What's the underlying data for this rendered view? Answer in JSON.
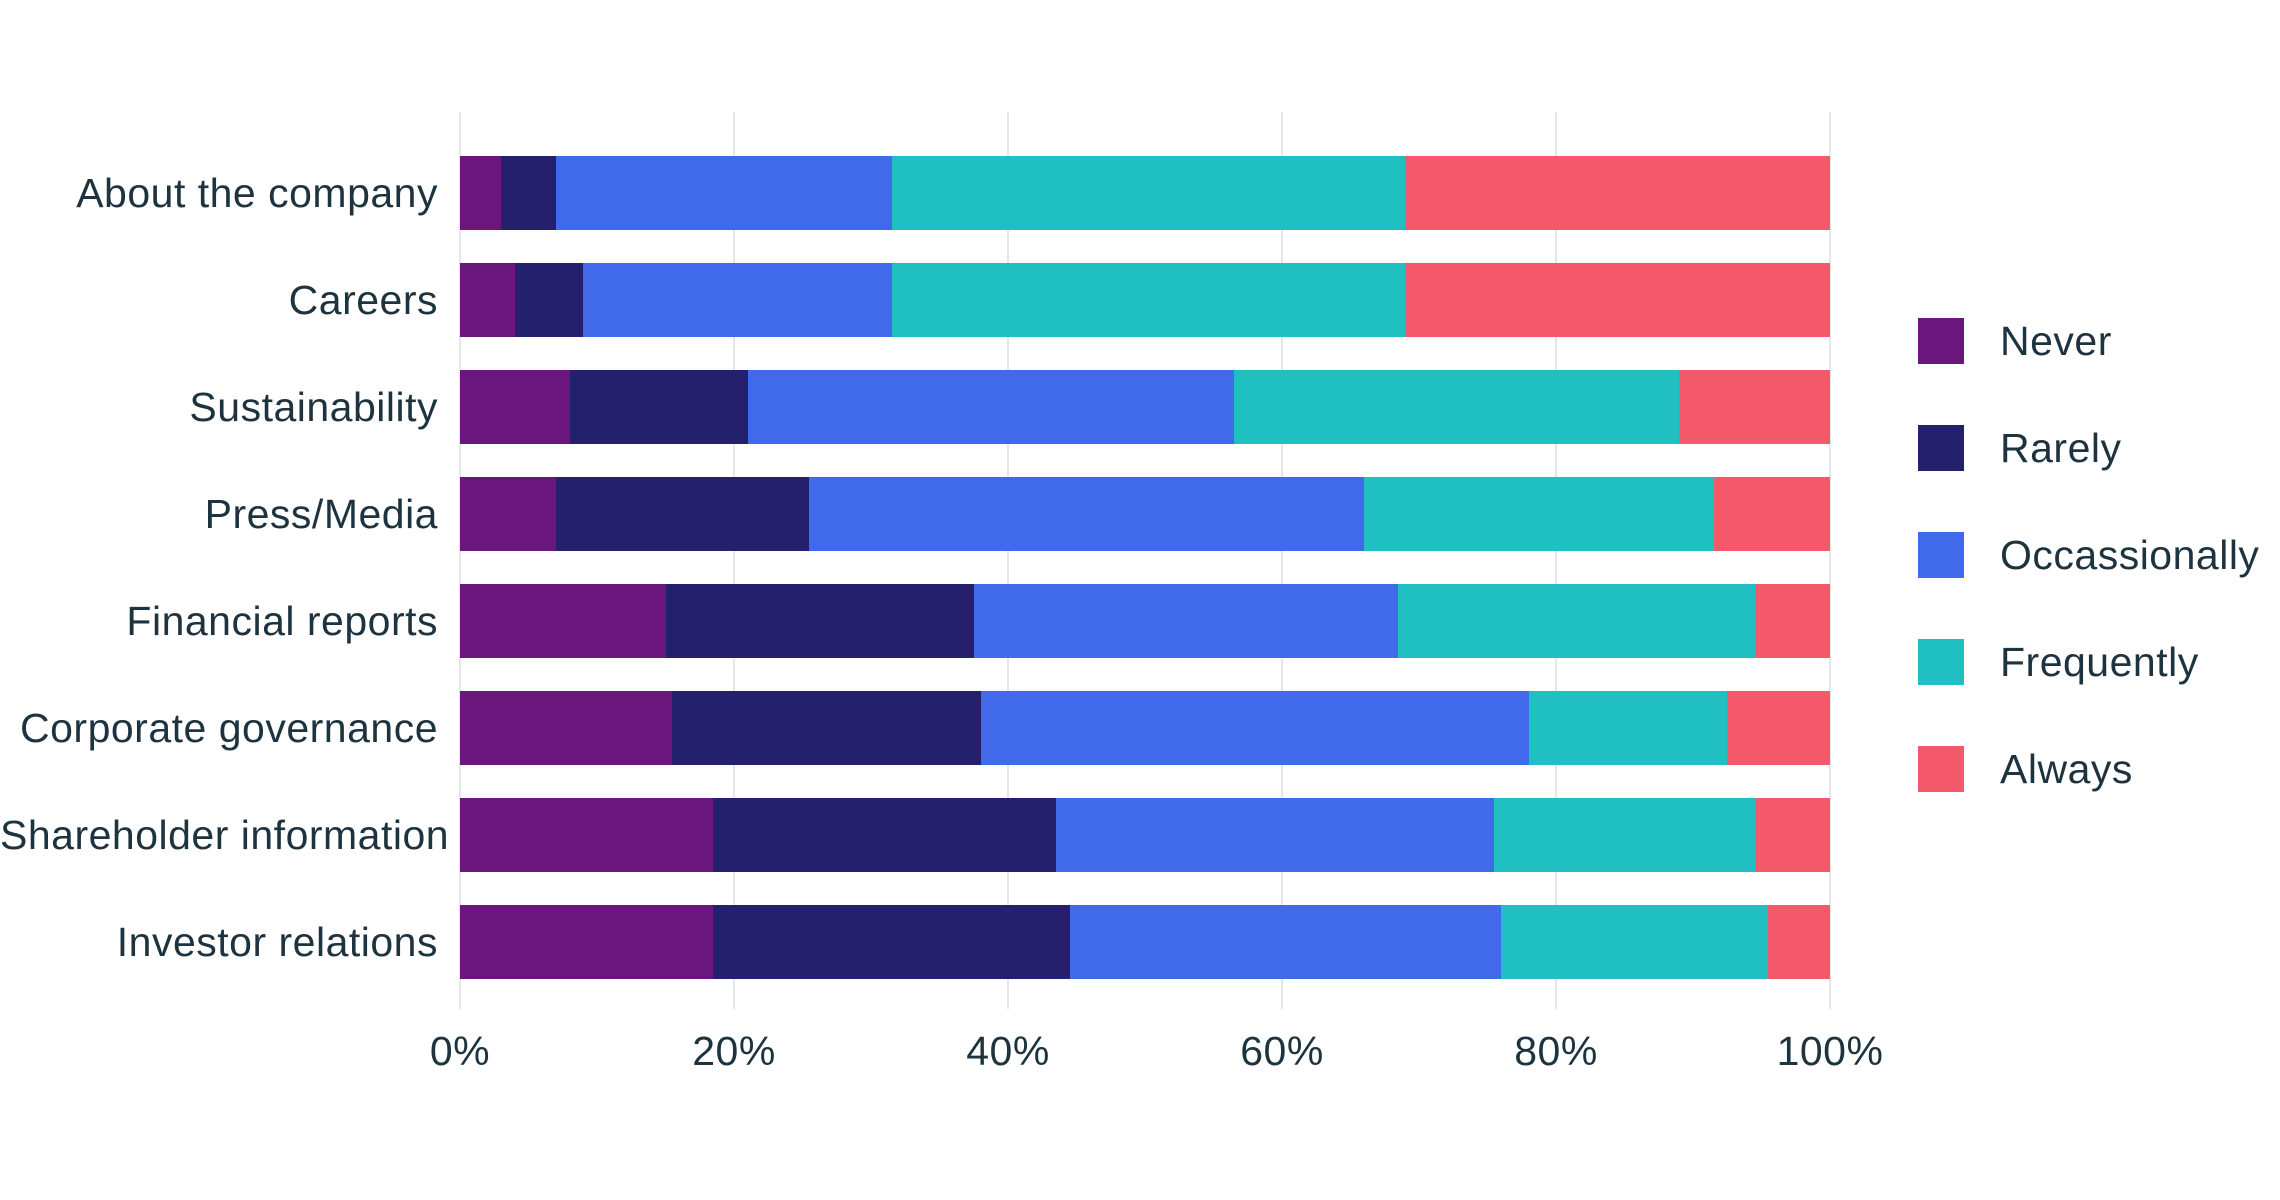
{
  "chart_data": {
    "type": "bar",
    "orientation": "horizontal",
    "stacked": true,
    "unit": "%",
    "title": "",
    "xlabel": "",
    "ylabel": "",
    "grid": true,
    "categories": [
      "About the company",
      "Careers",
      "Sustainability",
      "Press/Media",
      "Financial reports",
      "Corporate governance",
      "Shareholder information",
      "Investor relations"
    ],
    "series": [
      {
        "name": "Never",
        "color": "#6A167D",
        "values": [
          3,
          4,
          8,
          7,
          15,
          15.5,
          18.5,
          18.5
        ]
      },
      {
        "name": "Rarely",
        "color": "#24206E",
        "values": [
          4,
          5,
          13,
          18.5,
          22.5,
          22.5,
          25,
          26
        ]
      },
      {
        "name": "Occassionally",
        "color": "#4169EC",
        "values": [
          24.5,
          22.5,
          35.5,
          40.5,
          31,
          40,
          32,
          31.5
        ]
      },
      {
        "name": "Frequently",
        "color": "#1FBFC2",
        "values": [
          37.5,
          37.5,
          32.5,
          25.5,
          26,
          14.5,
          19,
          19.5
        ]
      },
      {
        "name": "Always",
        "color": "#F4596B",
        "values": [
          31,
          31,
          11,
          8.5,
          5.5,
          7.5,
          5.5,
          4.5
        ]
      }
    ],
    "x_axis": {
      "min": 0,
      "max": 100,
      "ticks": [
        "0%",
        "20%",
        "40%",
        "60%",
        "80%",
        "100%"
      ]
    },
    "legend": {
      "position": "right",
      "entries": [
        "Never",
        "Rarely",
        "Occassionally",
        "Frequently",
        "Always"
      ]
    },
    "colors": {
      "text": "#1E3340",
      "gridline": "#E4E7EA",
      "background": "#FFFFFF"
    }
  }
}
